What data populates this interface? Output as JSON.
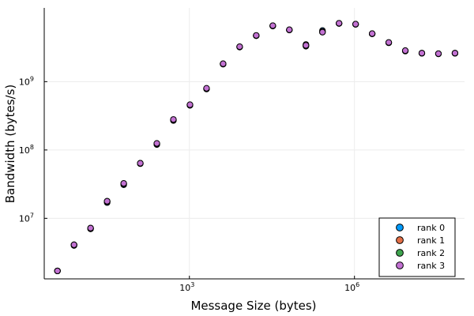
{
  "chart_data": {
    "type": "scatter",
    "xlabel": "Message Size (bytes)",
    "ylabel": "Bandwidth (bytes/s)",
    "xscale": "log10",
    "yscale": "log10",
    "xlim": [
      2.3,
      100000000
    ],
    "ylim": [
      1300000,
      12000000000
    ],
    "grid": true,
    "legend_position": "bottom-right",
    "x_ticks": [
      {
        "base": "10",
        "exp": "3",
        "value": 1000
      },
      {
        "base": "10",
        "exp": "6",
        "value": 1000000
      }
    ],
    "y_ticks": [
      {
        "base": "10",
        "exp": "7",
        "value": 10000000
      },
      {
        "base": "10",
        "exp": "8",
        "value": 100000000
      },
      {
        "base": "10",
        "exp": "9",
        "value": 1000000000
      }
    ],
    "x": [
      4,
      8,
      16,
      32,
      64,
      128,
      256,
      512,
      1024,
      2048,
      4096,
      8192,
      16384,
      32768,
      65536,
      131072,
      262144,
      524288,
      1048576,
      2097152,
      4194304,
      8388608,
      16777216,
      33554432,
      67108864
    ],
    "series": [
      {
        "name": "rank 0",
        "color": "#009AFA",
        "values": [
          1700000,
          4000000,
          7000000,
          17000000,
          31000000,
          63000000,
          120000000,
          270000000,
          450000000,
          780000000,
          1800000000,
          3200000000,
          4700000000,
          6500000000,
          5700000000,
          3300000000,
          5600000000,
          7100000000,
          6900000000,
          5000000000,
          3700000000,
          2800000000,
          2600000000,
          2550000000,
          2600000000
        ]
      },
      {
        "name": "rank 1",
        "color": "#E36F47",
        "values": [
          1700000,
          4100000,
          7100000,
          17500000,
          32000000,
          64000000,
          122000000,
          275000000,
          455000000,
          790000000,
          1820000000,
          3230000000,
          4720000000,
          6550000000,
          5720000000,
          3500000000,
          5400000000,
          7120000000,
          6920000000,
          5020000000,
          3720000000,
          2820000000,
          2610000000,
          2560000000,
          2610000000
        ]
      },
      {
        "name": "rank 2",
        "color": "#3EA44E",
        "values": [
          1700000,
          4100000,
          7200000,
          17800000,
          32000000,
          64000000,
          124000000,
          275000000,
          455000000,
          790000000,
          1820000000,
          3230000000,
          4720000000,
          6550000000,
          5720000000,
          3350000000,
          5300000000,
          7120000000,
          6920000000,
          5020000000,
          3720000000,
          2820000000,
          2610000000,
          2560000000,
          2610000000
        ]
      },
      {
        "name": "rank 3",
        "color": "#C271D2",
        "values": [
          1700000,
          4100000,
          7200000,
          17800000,
          32500000,
          64000000,
          125000000,
          280000000,
          460000000,
          800000000,
          1830000000,
          3250000000,
          4750000000,
          6600000000,
          5750000000,
          3400000000,
          5300000000,
          7150000000,
          6950000000,
          5050000000,
          3750000000,
          2850000000,
          2620000000,
          2570000000,
          2620000000
        ]
      }
    ]
  }
}
